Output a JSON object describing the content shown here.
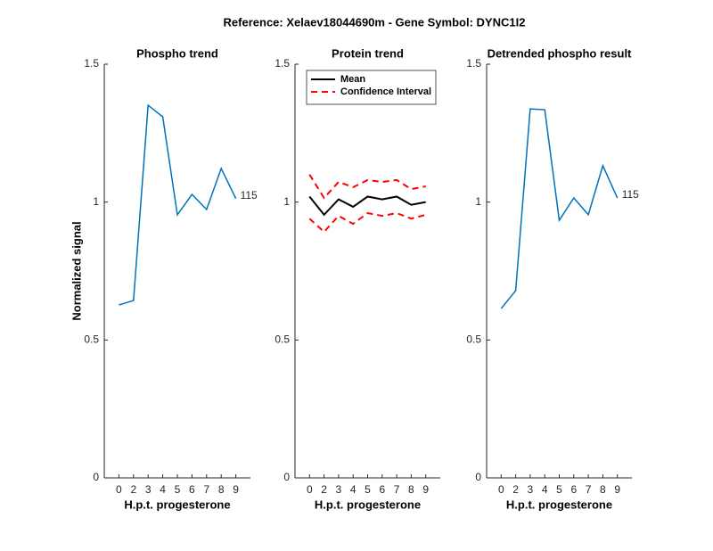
{
  "title": "Reference:  Xelaev18044690m - Gene Symbol:  DYNC1I2",
  "chart_data": [
    {
      "type": "line",
      "title": "Phospho trend",
      "xlabel": "H.p.t. progesterone",
      "ylabel": "Normalized signal",
      "categories": [
        "0",
        "2",
        "3",
        "4",
        "5",
        "6",
        "7",
        "8",
        "9"
      ],
      "series": [
        {
          "name": "Phospho",
          "color": "#0072bd",
          "dash": "solid",
          "values": [
            0.627,
            0.643,
            1.351,
            1.309,
            0.954,
            1.028,
            0.973,
            1.122,
            1.013
          ]
        }
      ],
      "annotation": "115",
      "ylim": [
        0,
        1.5
      ],
      "yticks": [
        0,
        0.5,
        1,
        1.5
      ],
      "legend": false
    },
    {
      "type": "line",
      "title": "Protein trend",
      "xlabel": "H.p.t. progesterone",
      "categories": [
        "0",
        "2",
        "3",
        "4",
        "5",
        "6",
        "7",
        "8",
        "9"
      ],
      "series": [
        {
          "name": "Mean",
          "color": "#000000",
          "dash": "solid",
          "values": [
            1.02,
            0.954,
            1.01,
            0.983,
            1.02,
            1.01,
            1.02,
            0.99,
            1.0
          ]
        },
        {
          "name": "Confidence Interval",
          "color": "#ff0000",
          "dash": "dashed",
          "values": [
            1.1,
            1.015,
            1.073,
            1.054,
            1.08,
            1.073,
            1.08,
            1.047,
            1.057
          ]
        },
        {
          "color": "#ff0000",
          "dash": "dashed",
          "values": [
            0.94,
            0.892,
            0.95,
            0.921,
            0.96,
            0.95,
            0.96,
            0.94,
            0.954
          ]
        }
      ],
      "ylim": [
        0,
        1.5
      ],
      "yticks": [
        0,
        0.5,
        1,
        1.5
      ],
      "legend": "north"
    },
    {
      "type": "line",
      "title": "Detrended phospho result",
      "xlabel": "H.p.t. progesterone",
      "categories": [
        "0",
        "2",
        "3",
        "4",
        "5",
        "6",
        "7",
        "8",
        "9"
      ],
      "series": [
        {
          "name": "Detrended",
          "color": "#0072bd",
          "dash": "solid",
          "values": [
            0.614,
            0.679,
            1.338,
            1.335,
            0.934,
            1.015,
            0.954,
            1.132,
            1.015
          ]
        }
      ],
      "annotation": "115",
      "ylim": [
        0,
        1.5
      ],
      "yticks": [
        0,
        0.5,
        1,
        1.5
      ],
      "legend": false
    }
  ]
}
